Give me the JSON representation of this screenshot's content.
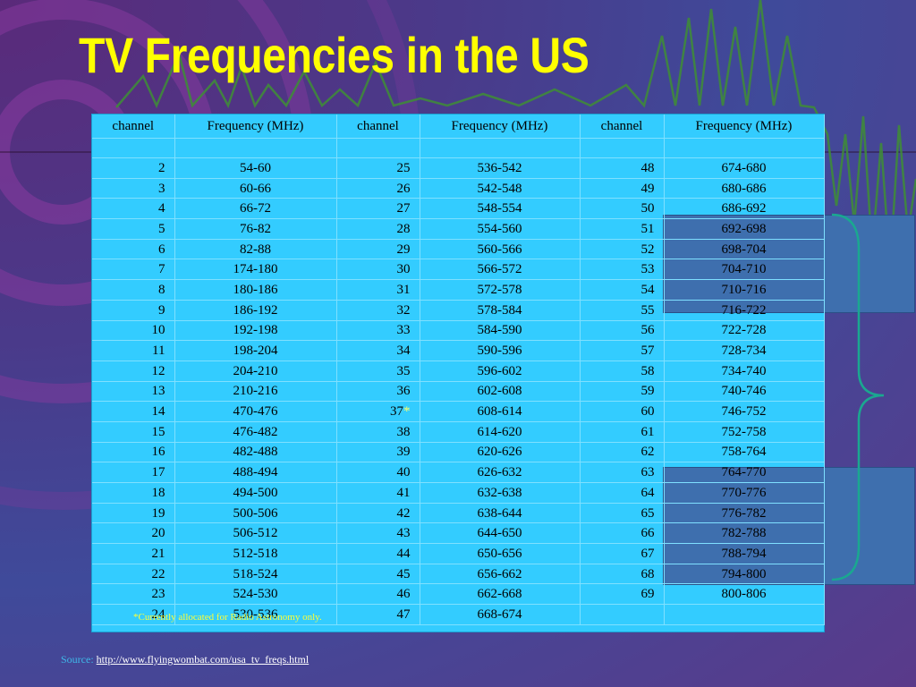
{
  "slide": {
    "title": "TV Frequencies in the US",
    "footnote": "*Currently allocated for Radio Astronomy only.",
    "source_label": "Source:",
    "source_url": "http://www.flyingwombat.com/usa_tv_freqs.html"
  },
  "table": {
    "headers": [
      "channel",
      "Frequency (MHz)",
      "channel",
      "Frequency (MHz)",
      "channel",
      "Frequency (MHz)"
    ],
    "rows": [
      [
        "2",
        "54-60",
        "25",
        "536-542",
        "48",
        "674-680"
      ],
      [
        "3",
        "60-66",
        "26",
        "542-548",
        "49",
        "680-686"
      ],
      [
        "4",
        "66-72",
        "27",
        "548-554",
        "50",
        "686-692"
      ],
      [
        "5",
        "76-82",
        "28",
        "554-560",
        "51",
        "692-698"
      ],
      [
        "6",
        "82-88",
        "29",
        "560-566",
        "52",
        "698-704"
      ],
      [
        "7",
        "174-180",
        "30",
        "566-572",
        "53",
        "704-710"
      ],
      [
        "8",
        "180-186",
        "31",
        "572-578",
        "54",
        "710-716"
      ],
      [
        "9",
        "186-192",
        "32",
        "578-584",
        "55",
        "716-722"
      ],
      [
        "10",
        "192-198",
        "33",
        "584-590",
        "56",
        "722-728"
      ],
      [
        "11",
        "198-204",
        "34",
        "590-596",
        "57",
        "728-734"
      ],
      [
        "12",
        "204-210",
        "35",
        "596-602",
        "58",
        "734-740"
      ],
      [
        "13",
        "210-216",
        "36",
        "602-608",
        "59",
        "740-746"
      ],
      [
        "14",
        "470-476",
        "37",
        "608-614",
        "60",
        "746-752"
      ],
      [
        "15",
        "476-482",
        "38",
        "614-620",
        "61",
        "752-758"
      ],
      [
        "16",
        "482-488",
        "39",
        "620-626",
        "62",
        "758-764"
      ],
      [
        "17",
        "488-494",
        "40",
        "626-632",
        "63",
        "764-770"
      ],
      [
        "18",
        "494-500",
        "41",
        "632-638",
        "64",
        "770-776"
      ],
      [
        "19",
        "500-506",
        "42",
        "638-644",
        "65",
        "776-782"
      ],
      [
        "20",
        "506-512",
        "43",
        "644-650",
        "66",
        "782-788"
      ],
      [
        "21",
        "512-518",
        "44",
        "650-656",
        "67",
        "788-794"
      ],
      [
        "22",
        "518-524",
        "45",
        "656-662",
        "68",
        "794-800"
      ],
      [
        "23",
        "524-530",
        "46",
        "662-668",
        "69",
        "800-806"
      ],
      [
        "24",
        "530-536",
        "47",
        "668-674",
        "",
        ""
      ]
    ],
    "asterisk_mark": "*",
    "highlight_color": "#3e6fae",
    "table_bg_color": "#33ccff"
  },
  "colors": {
    "title": "#ffff00",
    "footnote": "#ffff33",
    "source_label": "#3fb8e8",
    "bracket": "#1aa890"
  }
}
